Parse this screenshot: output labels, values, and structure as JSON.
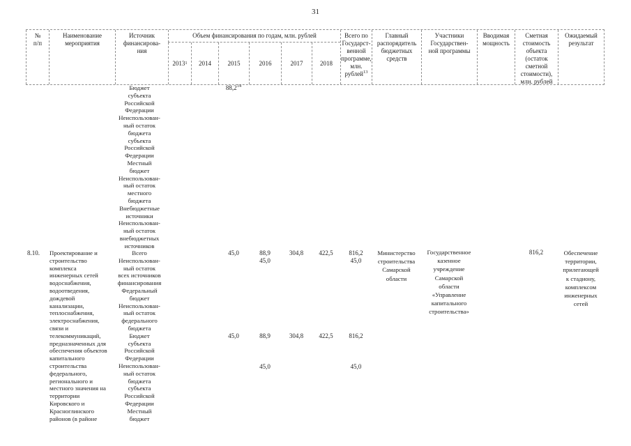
{
  "page_number": "31",
  "table": {
    "header": {
      "num_lines": [
        "№",
        "п/п"
      ],
      "name_lines": [
        "Наименование",
        "мероприятия"
      ],
      "source_lines": [
        "Источник",
        "финансирова-",
        "ния"
      ],
      "funding_group": "Объем финансирования по годам, млн. рублей",
      "years": [
        {
          "text": "2013",
          "sup": "1"
        },
        {
          "text": "2014"
        },
        {
          "text": "2015"
        },
        {
          "text": "2016"
        },
        {
          "text": "2017"
        },
        {
          "text": "2018"
        }
      ],
      "total_lines": [
        "Всего по",
        "Государст-",
        "венной",
        "программе,",
        "млн.",
        {
          "text": "рублей",
          "sup": "13"
        }
      ],
      "manager_lines": [
        "Главный",
        "распорядитель",
        "бюджетных",
        "средств"
      ],
      "participants_lines": [
        "Участники",
        "Государствен-",
        "ной программы"
      ],
      "capacity_lines": [
        "Вводимая",
        "мощность"
      ],
      "cost_lines": [
        "Сметная",
        "стоимость",
        "объекта",
        "(остаток",
        "сметной",
        "стоимости),",
        "млн. рублей"
      ],
      "result_lines": [
        "Ожидаемый",
        "результат"
      ]
    },
    "carryover": {
      "amount_2015": {
        "text": "88,2",
        "sup": "14"
      },
      "source_lines": [
        "Бюджет",
        "субъекта",
        "Российской",
        "Федерации",
        "Неиспользован-",
        "ный остаток",
        "бюджета",
        "субъекта",
        "Российской",
        "Федерации",
        "Местный",
        "бюджет",
        "Неиспользован-",
        "ный остаток",
        "местного",
        "бюджета",
        "Внебюджетные",
        "источники",
        "Неиспользован-",
        "ный остаток",
        "внебюджетных",
        "источников"
      ]
    },
    "row": {
      "number": "8.10.",
      "name_lines": [
        "Проектирование и",
        "строительство",
        "комплекса",
        "инженерных сетей",
        "водоснабжения,",
        "водоотведения,",
        "дождевой",
        "канализации,",
        "теплоснабжения,",
        "электроснабжения,",
        "связи и",
        "телекоммуникаций,",
        "предназначенных для",
        "обеспечения объектов",
        "капитального",
        "строительства",
        "федерального,",
        "регионального и",
        "местного значения на",
        "территории",
        "Кировского и",
        "Красноглинского",
        "районов (в районе"
      ],
      "source_lines": [
        "Всего",
        "Неиспользован-",
        "ный остаток",
        "всех источников",
        "финансирования",
        "Федеральный",
        "бюджет",
        "Неиспользован-",
        "ный остаток",
        "федерального",
        "бюджета",
        "Бюджет",
        "субъекта",
        "Российской",
        "Федерации",
        "Неиспользован-",
        "ный остаток",
        "бюджета",
        "субъекта",
        "Российской",
        "Федерации",
        "Местный",
        "бюджет"
      ],
      "figures": {
        "total_row": {
          "y2015": "45,0",
          "y2016": "88,9",
          "y2017": "304,8",
          "y2018": "422,5",
          "total": "816,2"
        },
        "unused_all_row": {
          "y2016": "45,0",
          "total": "45,0"
        },
        "region_budget_row": {
          "y2015": "45,0",
          "y2016": "88,9",
          "y2017": "304,8",
          "y2018": "422,5",
          "total": "816,2"
        },
        "unused_region_row": {
          "y2016": "45,0",
          "total": "45,0"
        }
      },
      "manager_lines": [
        "Министерство",
        "строительства",
        "Самарской",
        "области"
      ],
      "participants_lines": [
        "Государственное",
        "казенное",
        "учреждение",
        "Самарской",
        "области",
        "«Управление",
        "капитального",
        "строительства»"
      ],
      "estimated_cost": "816,2",
      "result_lines": [
        "Обеспечение",
        "территории,",
        "прилегающей",
        "к стадиону,",
        "комплексом",
        "инженерных",
        "сетей"
      ]
    }
  }
}
